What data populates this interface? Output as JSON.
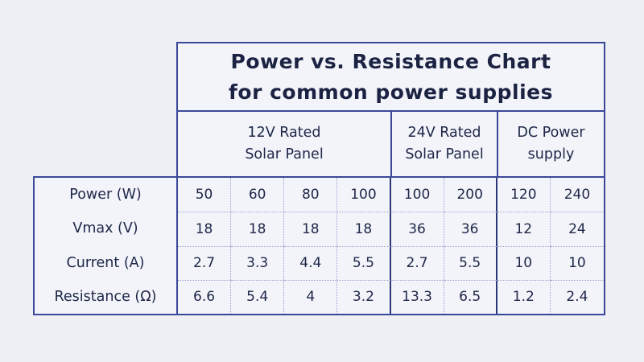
{
  "page": {
    "background": "#eef0f5",
    "table_background": "#f2f4fa",
    "border_color": "#3b4899",
    "separator_color": "#2c3875",
    "dotted_divider_color": "#9aa4cc",
    "text_color": "#1e2647"
  },
  "table": {
    "title_line1": "Power vs. Resistance Chart",
    "title_line2": "for common power supplies",
    "groups": [
      {
        "line1": "12V Rated",
        "line2": "Solar Panel",
        "span": 4
      },
      {
        "line1": "24V Rated",
        "line2": "Solar Panel",
        "span": 2
      },
      {
        "line1": "DC Power",
        "line2": "supply",
        "span": 2
      }
    ],
    "rows": [
      {
        "label": "Power (W)",
        "values": [
          "50",
          "60",
          "80",
          "100",
          "100",
          "200",
          "120",
          "240"
        ]
      },
      {
        "label": "Vmax (V)",
        "values": [
          "18",
          "18",
          "18",
          "18",
          "36",
          "36",
          "12",
          "24"
        ]
      },
      {
        "label": "Current (A)",
        "values": [
          "2.7",
          "3.3",
          "4.4",
          "5.5",
          "2.7",
          "5.5",
          "10",
          "10"
        ]
      },
      {
        "label": "Resistance (Ω)",
        "values": [
          "6.6",
          "5.4",
          "4",
          "3.2",
          "13.3",
          "6.5",
          "1.2",
          "2.4"
        ]
      }
    ]
  },
  "chart_data": {
    "type": "table",
    "title": "Power vs. Resistance Chart for common power supplies",
    "column_groups": [
      {
        "label": "12V Rated Solar Panel",
        "columns": 4
      },
      {
        "label": "24V Rated Solar Panel",
        "columns": 2
      },
      {
        "label": "DC Power supply",
        "columns": 2
      }
    ],
    "row_headers": [
      "Power (W)",
      "Vmax (V)",
      "Current (A)",
      "Resistance (Ω)"
    ],
    "rows": [
      [
        50,
        60,
        80,
        100,
        100,
        200,
        120,
        240
      ],
      [
        18,
        18,
        18,
        18,
        36,
        36,
        12,
        24
      ],
      [
        2.7,
        3.3,
        4.4,
        5.5,
        2.7,
        5.5,
        10,
        10
      ],
      [
        6.6,
        5.4,
        4,
        3.2,
        13.3,
        6.5,
        1.2,
        2.4
      ]
    ]
  }
}
